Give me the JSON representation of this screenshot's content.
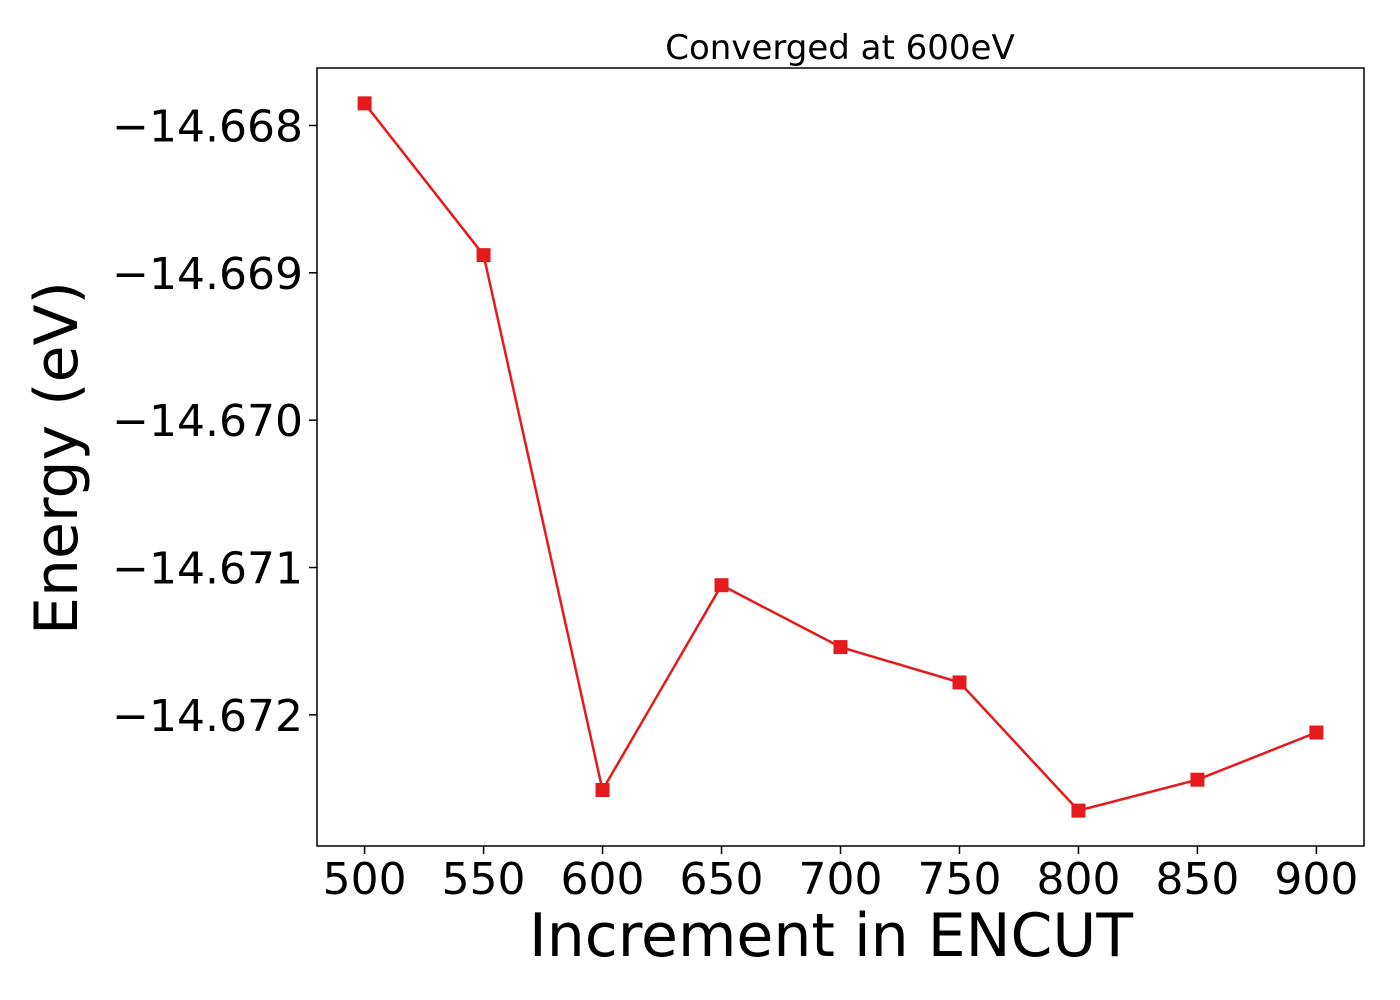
{
  "chart_data": {
    "type": "line",
    "title": "Converged at 600eV",
    "xlabel": "Increment in ENCUT",
    "ylabel": "Energy (eV)",
    "x": [
      500,
      550,
      600,
      650,
      700,
      750,
      800,
      850,
      900
    ],
    "xticks": [
      500,
      550,
      600,
      650,
      700,
      750,
      800,
      850,
      900
    ],
    "xtick_labels": [
      "500",
      "550",
      "600",
      "650",
      "700",
      "750",
      "800",
      "850",
      "900"
    ],
    "yticks": [
      -14.668,
      -14.669,
      -14.67,
      -14.671,
      -14.672
    ],
    "ytick_labels": [
      "−14.668",
      "−14.669",
      "−14.670",
      "−14.671",
      "−14.672"
    ],
    "series": [
      {
        "values": [
          -14.66785,
          -14.66888,
          -14.67251,
          -14.67112,
          -14.67154,
          -14.67178,
          -14.67265,
          -14.67244,
          -14.67212
        ],
        "color": "#e41a1c",
        "marker": "square"
      }
    ],
    "xlim": [
      480,
      920
    ],
    "ylim": [
      -14.67289,
      -14.66761
    ],
    "grid": false,
    "legend": "none"
  }
}
